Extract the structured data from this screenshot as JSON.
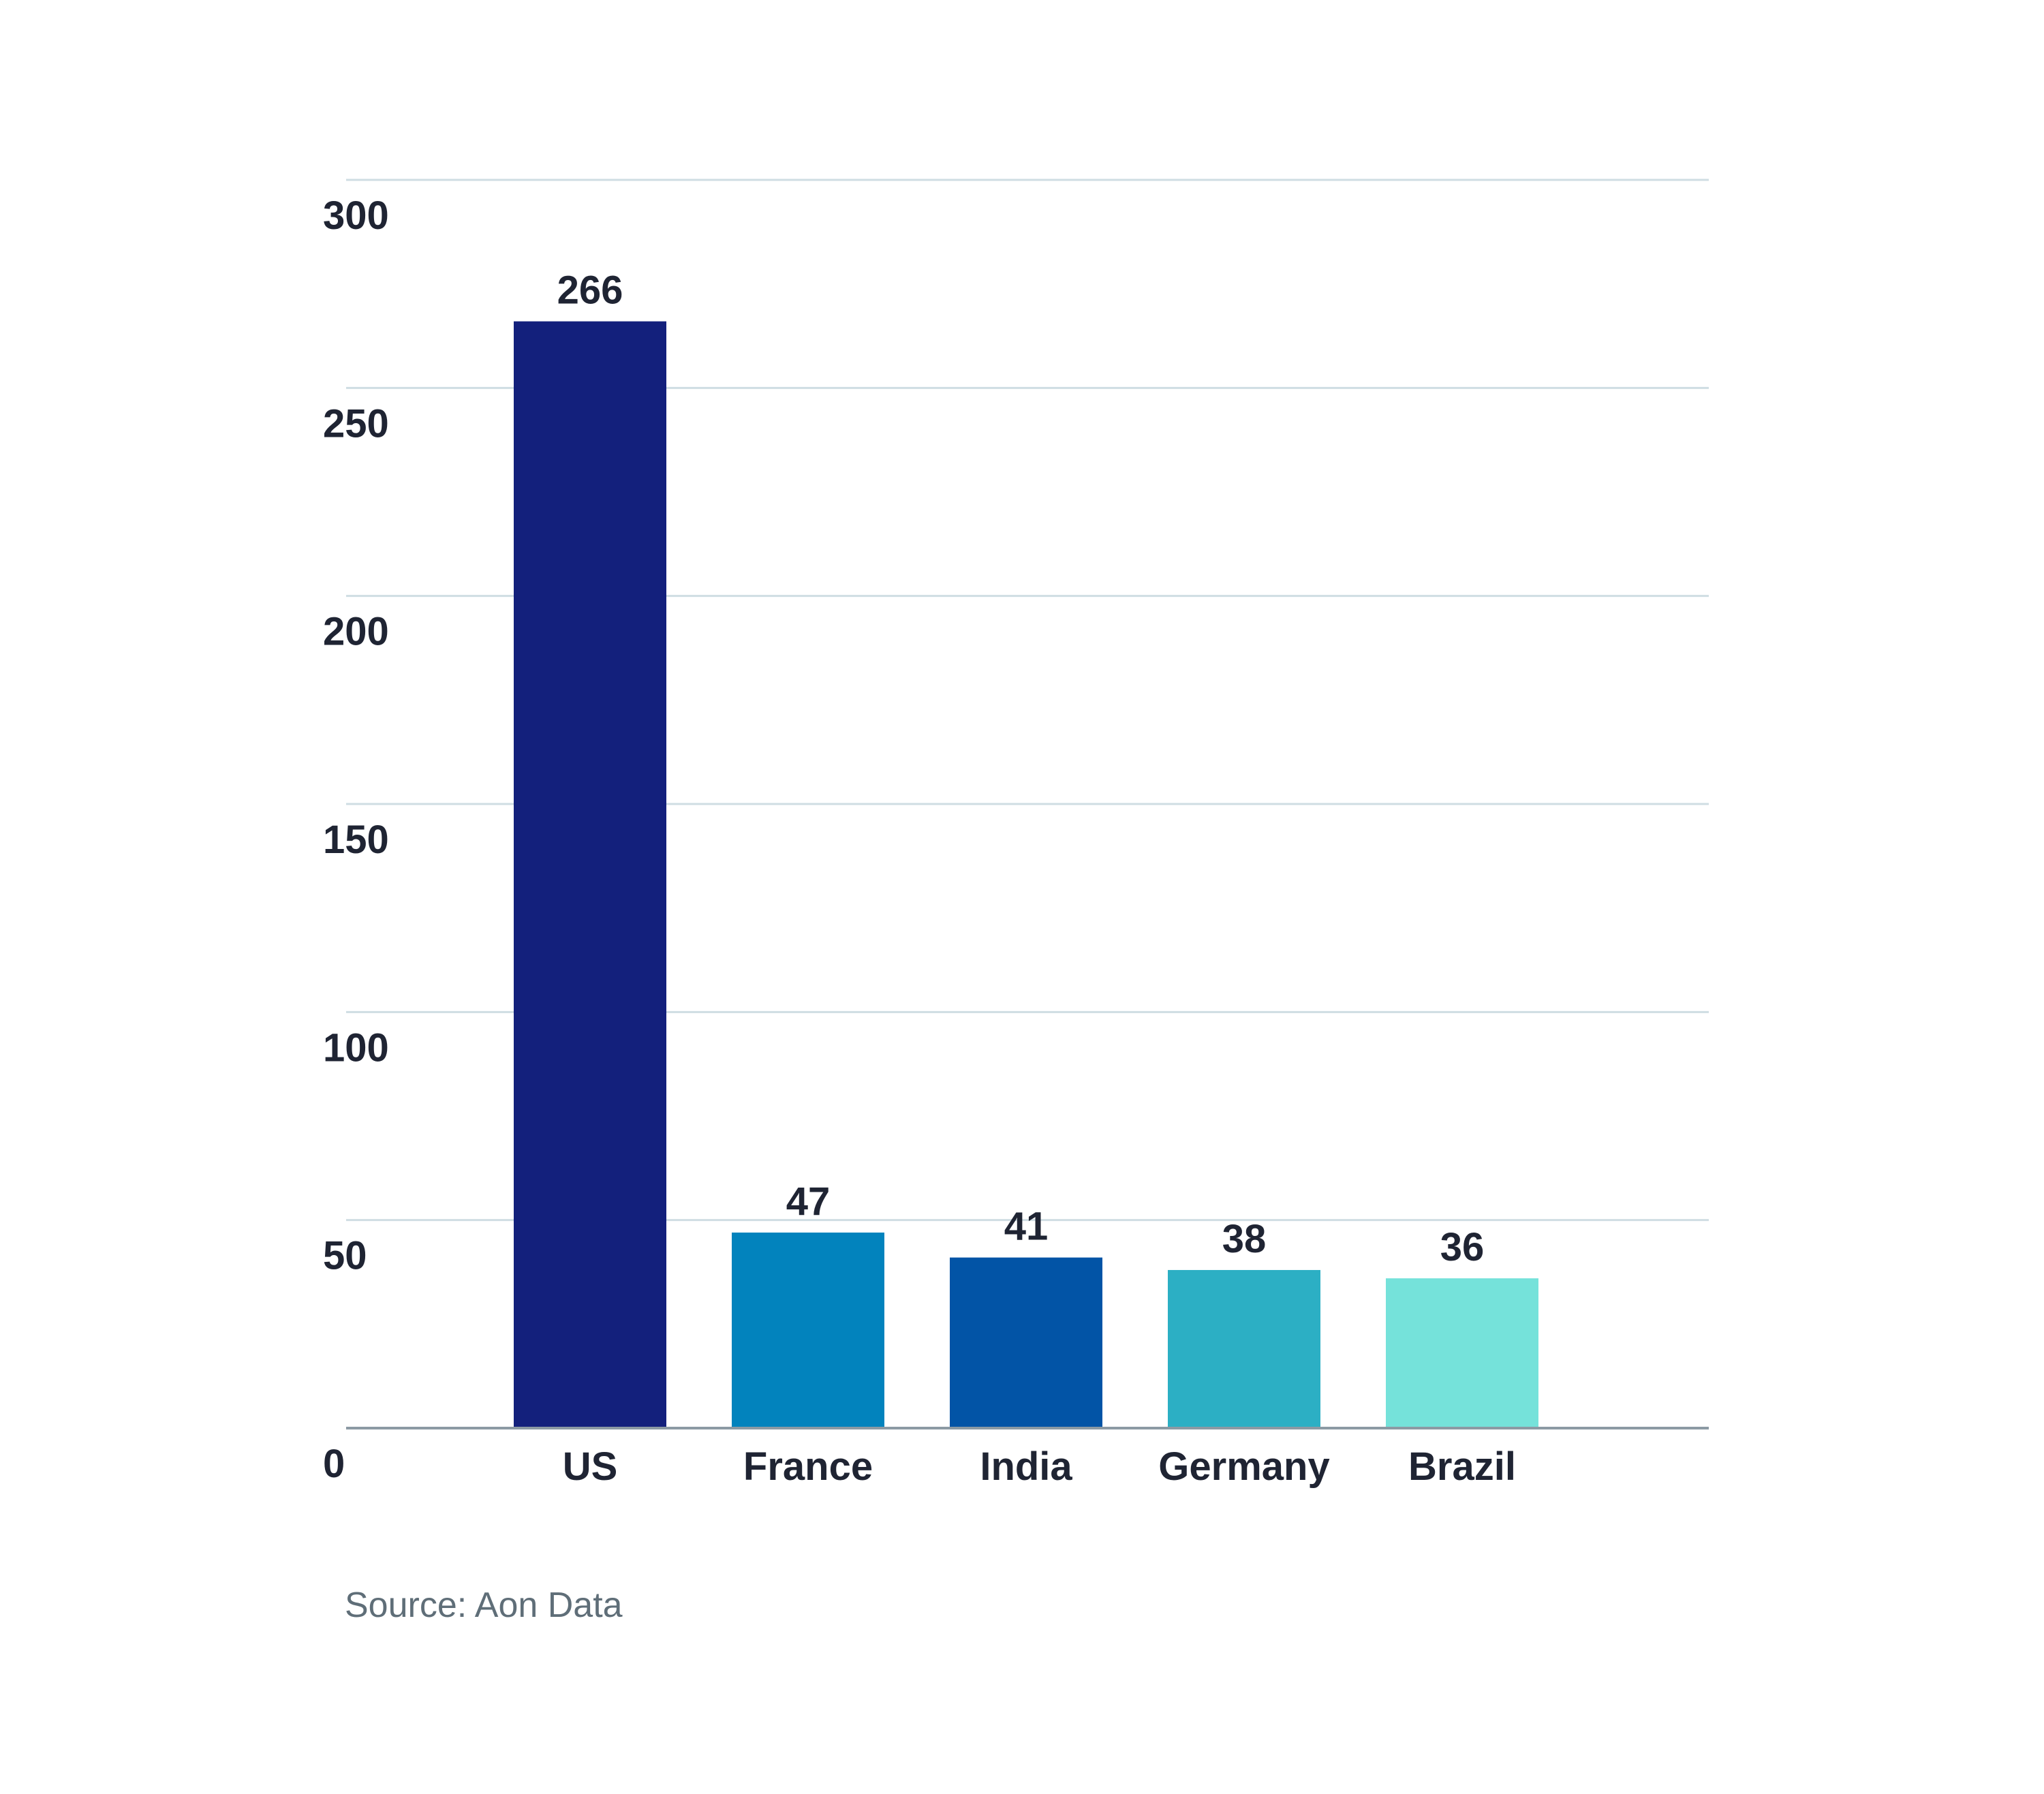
{
  "chart_data": {
    "type": "bar",
    "categories": [
      "US",
      "France",
      "India",
      "Germany",
      "Brazil"
    ],
    "values": [
      266,
      47,
      41,
      38,
      36
    ],
    "data_labels": [
      "266",
      "47",
      "41",
      "38",
      "36"
    ],
    "colors": [
      "#13207c",
      "#0283bd",
      "#0254a6",
      "#2cafc4",
      "#75e2da"
    ],
    "title": "",
    "xlabel": "",
    "ylabel": "",
    "ylim": [
      0,
      300
    ],
    "yticks": [
      0,
      50,
      100,
      150,
      200,
      250,
      300
    ],
    "ytick_labels": [
      "0",
      "50",
      "100",
      "150",
      "200",
      "250",
      "300"
    ],
    "grid": true,
    "legend": "none",
    "gridline_color": "#cfdde3",
    "baseline_color": "#8c9aa4"
  },
  "footer": {
    "source": "Source: Aon Data"
  }
}
